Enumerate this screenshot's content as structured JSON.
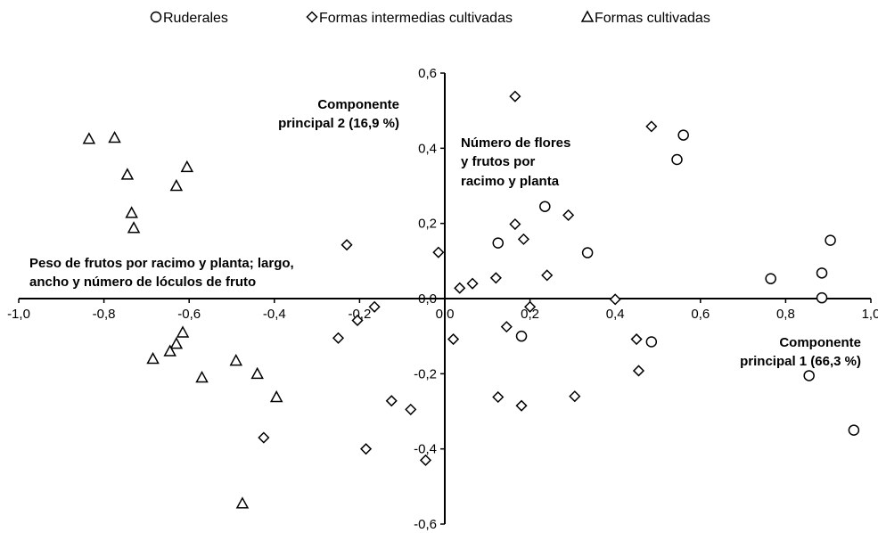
{
  "chart_data": {
    "type": "scatter",
    "xlim": [
      -1.0,
      1.0
    ],
    "ylim": [
      -0.6,
      0.6
    ],
    "x_ticks": [
      "-1,0",
      "-0,8",
      "-0,6",
      "-0,4",
      "-0,2",
      "0,0",
      "0,2",
      "0,4",
      "0,6",
      "0,8",
      "1,0"
    ],
    "y_ticks": [
      "0,6",
      "0,4",
      "0,2",
      "0,0",
      "-0,2",
      "-0,4",
      "-0,6"
    ],
    "grid": false,
    "legend_position": "top",
    "series": [
      {
        "name": "Ruderales",
        "marker": "circle",
        "points": [
          [
            0.56,
            0.435
          ],
          [
            0.545,
            0.37
          ],
          [
            0.235,
            0.245
          ],
          [
            0.125,
            0.148
          ],
          [
            0.335,
            0.122
          ],
          [
            0.905,
            0.155
          ],
          [
            0.885,
            0.068
          ],
          [
            0.765,
            0.053
          ],
          [
            0.885,
            0.002
          ],
          [
            0.18,
            -0.1
          ],
          [
            0.485,
            -0.115
          ],
          [
            0.855,
            -0.205
          ],
          [
            0.96,
            -0.35
          ]
        ]
      },
      {
        "name": "Formas intermedias cultivadas",
        "marker": "diamond",
        "points": [
          [
            0.165,
            0.538
          ],
          [
            0.485,
            0.458
          ],
          [
            0.165,
            0.198
          ],
          [
            0.29,
            0.222
          ],
          [
            0.185,
            0.158
          ],
          [
            -0.23,
            0.143
          ],
          [
            -0.015,
            0.123
          ],
          [
            0.12,
            0.055
          ],
          [
            0.065,
            0.04
          ],
          [
            0.035,
            0.028
          ],
          [
            0.24,
            0.062
          ],
          [
            0.2,
            -0.022
          ],
          [
            0.4,
            -0.002
          ],
          [
            -0.165,
            -0.022
          ],
          [
            -0.205,
            -0.058
          ],
          [
            0.145,
            -0.075
          ],
          [
            -0.25,
            -0.105
          ],
          [
            0.02,
            -0.108
          ],
          [
            0.45,
            -0.108
          ],
          [
            0.455,
            -0.192
          ],
          [
            0.125,
            -0.262
          ],
          [
            0.18,
            -0.285
          ],
          [
            0.305,
            -0.26
          ],
          [
            -0.125,
            -0.272
          ],
          [
            -0.08,
            -0.295
          ],
          [
            -0.425,
            -0.37
          ],
          [
            -0.185,
            -0.4
          ],
          [
            -0.045,
            -0.43
          ]
        ]
      },
      {
        "name": "Formas cultivadas",
        "marker": "triangle",
        "points": [
          [
            -0.835,
            0.425
          ],
          [
            -0.775,
            0.428
          ],
          [
            -0.745,
            0.33
          ],
          [
            -0.605,
            0.35
          ],
          [
            -0.63,
            0.3
          ],
          [
            -0.735,
            0.228
          ],
          [
            -0.73,
            0.188
          ],
          [
            -0.615,
            -0.09
          ],
          [
            -0.63,
            -0.12
          ],
          [
            -0.645,
            -0.14
          ],
          [
            -0.685,
            -0.16
          ],
          [
            -0.49,
            -0.165
          ],
          [
            -0.57,
            -0.21
          ],
          [
            -0.44,
            -0.2
          ],
          [
            -0.395,
            -0.262
          ],
          [
            -0.475,
            -0.545
          ]
        ]
      }
    ]
  },
  "annotations": {
    "pc2_line1": "Componente",
    "pc2_line2": "principal 2 (16,9  %)",
    "flowers_line1": "Número de flores",
    "flowers_line2": "y frutos por",
    "flowers_line3": "racimo y planta",
    "weight_line1": "Peso de frutos por racimo y planta; largo,",
    "weight_line2": "ancho y número de lóculos de fruto",
    "pc1_line1": "Componente",
    "pc1_line2": "principal 1 (66,3 %)"
  }
}
